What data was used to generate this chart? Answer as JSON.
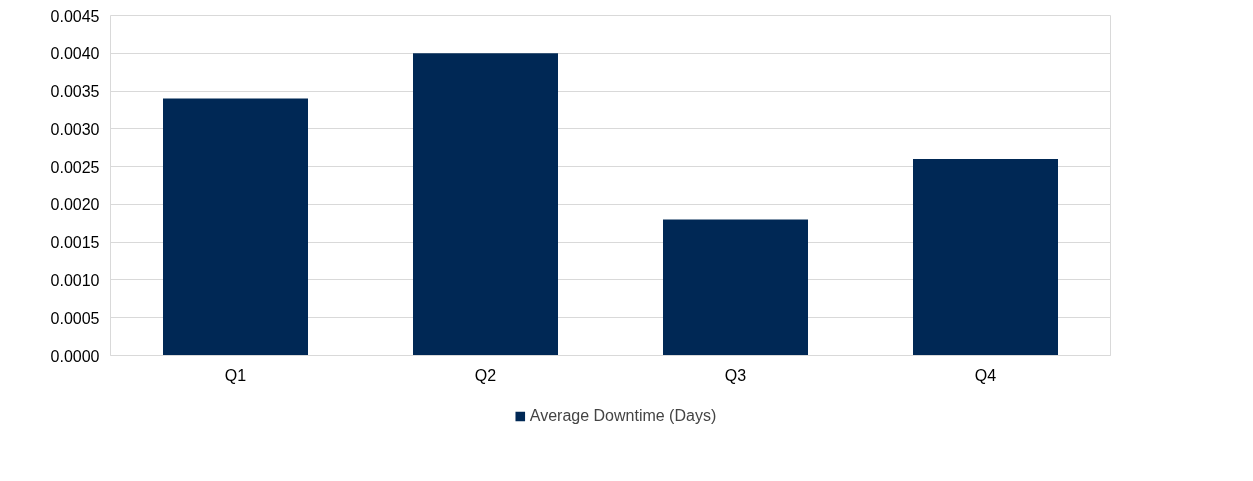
{
  "chart_data": {
    "type": "bar",
    "categories": [
      "Q1",
      "Q2",
      "Q3",
      "Q4"
    ],
    "series": [
      {
        "name": "Average Downtime (Days)",
        "color": "#002855",
        "values": [
          0.0034,
          0.004,
          0.0018,
          0.0026
        ]
      }
    ],
    "ylim": [
      0,
      0.0045
    ],
    "yticks": [
      {
        "value": 0,
        "label": "0.0000"
      },
      {
        "value": 0.0005,
        "label": "0.0005"
      },
      {
        "value": 0.001,
        "label": "0.0010"
      },
      {
        "value": 0.0015,
        "label": "0.0015"
      },
      {
        "value": 0.002,
        "label": "0.0020"
      },
      {
        "value": 0.0025,
        "label": "0.0025"
      },
      {
        "value": 0.003,
        "label": "0.0030"
      },
      {
        "value": 0.0035,
        "label": "0.0035"
      },
      {
        "value": 0.004,
        "label": "0.0040"
      },
      {
        "value": 0.0045,
        "label": "0.0045"
      }
    ],
    "grid": "y",
    "legend": "bottom"
  }
}
